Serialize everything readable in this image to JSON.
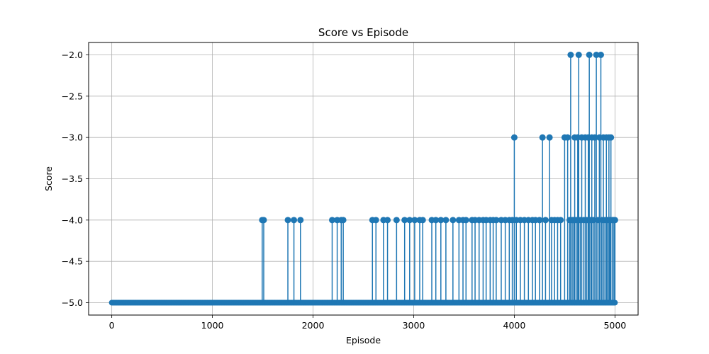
{
  "chart_data": {
    "type": "line",
    "title": "Score vs Episode",
    "xlabel": "Episode",
    "ylabel": "Score",
    "xlim": [
      -230,
      5230
    ],
    "ylim": [
      -5.15,
      -1.85
    ],
    "xticks": [
      0,
      1000,
      2000,
      3000,
      4000,
      5000
    ],
    "xtick_labels": [
      "0",
      "1000",
      "2000",
      "3000",
      "4000",
      "5000"
    ],
    "yticks": [
      -5.0,
      -4.5,
      -4.0,
      -3.5,
      -3.0,
      -2.5,
      -2.0
    ],
    "ytick_labels": [
      "−5.0",
      "−4.5",
      "−4.0",
      "−3.5",
      "−3.0",
      "−2.5",
      "−2.0"
    ],
    "grid": true,
    "marker": "circle",
    "color": "#1f77b4",
    "series": [
      {
        "baseline": -5,
        "x_range": [
          0,
          5000
        ],
        "spikes": [
          {
            "x": 1495,
            "y": -4
          },
          {
            "x": 1510,
            "y": -4
          },
          {
            "x": 1750,
            "y": -4
          },
          {
            "x": 1810,
            "y": -4
          },
          {
            "x": 1875,
            "y": -4
          },
          {
            "x": 2190,
            "y": -4
          },
          {
            "x": 2240,
            "y": -4
          },
          {
            "x": 2280,
            "y": -4
          },
          {
            "x": 2300,
            "y": -4
          },
          {
            "x": 2590,
            "y": -4
          },
          {
            "x": 2625,
            "y": -4
          },
          {
            "x": 2700,
            "y": -4
          },
          {
            "x": 2740,
            "y": -4
          },
          {
            "x": 2830,
            "y": -4
          },
          {
            "x": 2910,
            "y": -4
          },
          {
            "x": 2960,
            "y": -4
          },
          {
            "x": 3010,
            "y": -4
          },
          {
            "x": 3060,
            "y": -4
          },
          {
            "x": 3090,
            "y": -4
          },
          {
            "x": 3180,
            "y": -4
          },
          {
            "x": 3220,
            "y": -4
          },
          {
            "x": 3270,
            "y": -4
          },
          {
            "x": 3320,
            "y": -4
          },
          {
            "x": 3390,
            "y": -4
          },
          {
            "x": 3450,
            "y": -4
          },
          {
            "x": 3490,
            "y": -4
          },
          {
            "x": 3520,
            "y": -4
          },
          {
            "x": 3580,
            "y": -4
          },
          {
            "x": 3610,
            "y": -4
          },
          {
            "x": 3650,
            "y": -4
          },
          {
            "x": 3690,
            "y": -4
          },
          {
            "x": 3720,
            "y": -4
          },
          {
            "x": 3760,
            "y": -4
          },
          {
            "x": 3790,
            "y": -4
          },
          {
            "x": 3820,
            "y": -4
          },
          {
            "x": 3870,
            "y": -4
          },
          {
            "x": 3910,
            "y": -4
          },
          {
            "x": 3950,
            "y": -4
          },
          {
            "x": 3980,
            "y": -4
          },
          {
            "x": 4000,
            "y": -3
          },
          {
            "x": 4020,
            "y": -4
          },
          {
            "x": 4060,
            "y": -4
          },
          {
            "x": 4100,
            "y": -4
          },
          {
            "x": 4140,
            "y": -4
          },
          {
            "x": 4180,
            "y": -4
          },
          {
            "x": 4210,
            "y": -4
          },
          {
            "x": 4250,
            "y": -4
          },
          {
            "x": 4280,
            "y": -3
          },
          {
            "x": 4310,
            "y": -4
          },
          {
            "x": 4350,
            "y": -3
          },
          {
            "x": 4370,
            "y": -4
          },
          {
            "x": 4400,
            "y": -4
          },
          {
            "x": 4430,
            "y": -4
          },
          {
            "x": 4460,
            "y": -4
          },
          {
            "x": 4500,
            "y": -3
          },
          {
            "x": 4530,
            "y": -3
          },
          {
            "x": 4550,
            "y": -4
          },
          {
            "x": 4560,
            "y": -2
          },
          {
            "x": 4575,
            "y": -4
          },
          {
            "x": 4590,
            "y": -4
          },
          {
            "x": 4600,
            "y": -3
          },
          {
            "x": 4615,
            "y": -4
          },
          {
            "x": 4630,
            "y": -3
          },
          {
            "x": 4640,
            "y": -2
          },
          {
            "x": 4655,
            "y": -4
          },
          {
            "x": 4670,
            "y": -3
          },
          {
            "x": 4690,
            "y": -4
          },
          {
            "x": 4705,
            "y": -3
          },
          {
            "x": 4720,
            "y": -4
          },
          {
            "x": 4735,
            "y": -3
          },
          {
            "x": 4745,
            "y": -2
          },
          {
            "x": 4760,
            "y": -4
          },
          {
            "x": 4770,
            "y": -3
          },
          {
            "x": 4785,
            "y": -4
          },
          {
            "x": 4800,
            "y": -3
          },
          {
            "x": 4815,
            "y": -2
          },
          {
            "x": 4830,
            "y": -4
          },
          {
            "x": 4845,
            "y": -3
          },
          {
            "x": 4860,
            "y": -2
          },
          {
            "x": 4870,
            "y": -4
          },
          {
            "x": 4885,
            "y": -3
          },
          {
            "x": 4900,
            "y": -4
          },
          {
            "x": 4915,
            "y": -3
          },
          {
            "x": 4925,
            "y": -4
          },
          {
            "x": 4940,
            "y": -3
          },
          {
            "x": 4950,
            "y": -4
          },
          {
            "x": 4960,
            "y": -3
          },
          {
            "x": 4975,
            "y": -4
          },
          {
            "x": 4990,
            "y": -4
          },
          {
            "x": 5000,
            "y": -4
          }
        ]
      }
    ]
  }
}
